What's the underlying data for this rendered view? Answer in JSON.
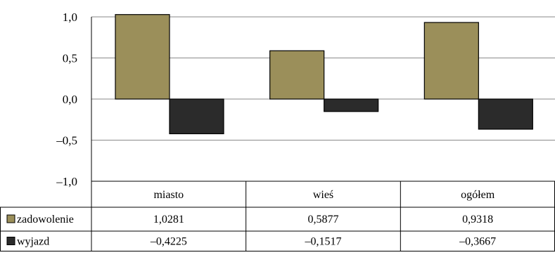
{
  "chart_data": {
    "type": "bar",
    "categories": [
      "miasto",
      "wieś",
      "ogółem"
    ],
    "series": [
      {
        "name": "zadowolenie",
        "values": [
          1.0281,
          0.5877,
          0.9318
        ],
        "display": [
          "1,0281",
          "0,5877",
          "0,9318"
        ],
        "color": "#9b8f5a"
      },
      {
        "name": "wyjazd",
        "values": [
          -0.4225,
          -0.1517,
          -0.3667
        ],
        "display": [
          "–0,4225",
          "–0,1517",
          "–0,3667"
        ],
        "color": "#2b2b2b"
      }
    ],
    "yticks": [
      1.0,
      0.5,
      0.0,
      -0.5,
      -1.0
    ],
    "ytick_labels": [
      "1,0",
      "0,5",
      "0,0",
      "–0,5",
      "–1,0"
    ],
    "ylim": [
      -1.0,
      1.0
    ],
    "grid": true,
    "legend": "data-table-left",
    "data_table": true
  }
}
